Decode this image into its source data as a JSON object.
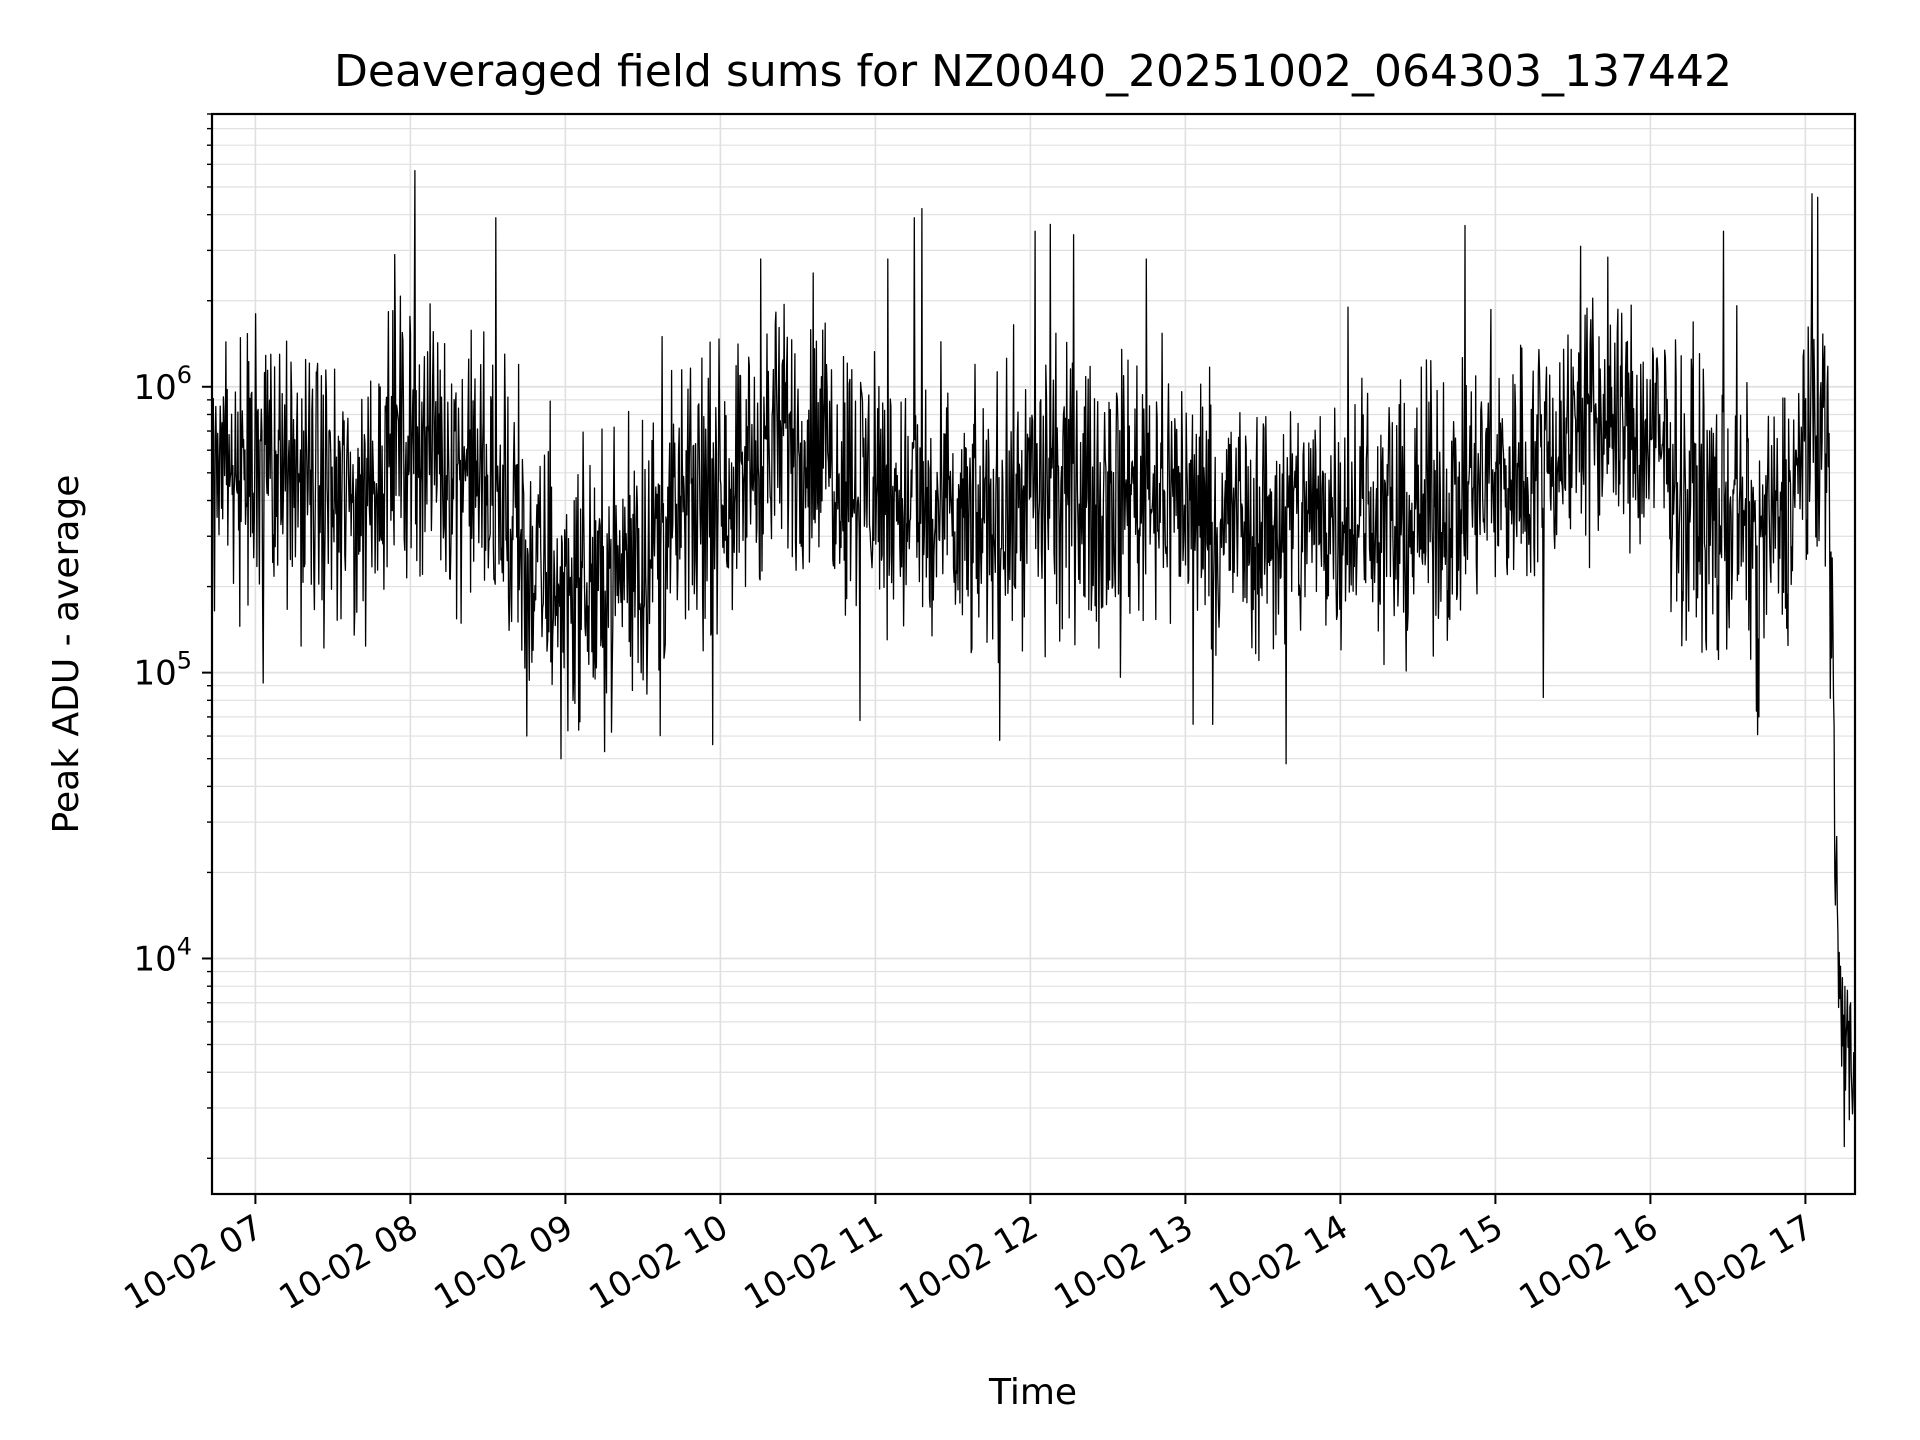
{
  "chart_data": {
    "type": "line",
    "title": "Deaveraged field sums for NZ0040_20251002_064303_137442",
    "xlabel": "Time",
    "ylabel": "Peak ADU - average",
    "yscale": "log",
    "ylim": [
      1500,
      9000000
    ],
    "xlim_hours": [
      6.72,
      17.32
    ],
    "x_ticks": [
      {
        "hour": 7,
        "label": "10-02 07"
      },
      {
        "hour": 8,
        "label": "10-02 08"
      },
      {
        "hour": 9,
        "label": "10-02 09"
      },
      {
        "hour": 10,
        "label": "10-02 10"
      },
      {
        "hour": 11,
        "label": "10-02 11"
      },
      {
        "hour": 12,
        "label": "10-02 12"
      },
      {
        "hour": 13,
        "label": "10-02 13"
      },
      {
        "hour": 14,
        "label": "10-02 14"
      },
      {
        "hour": 15,
        "label": "10-02 15"
      },
      {
        "hour": 16,
        "label": "10-02 16"
      },
      {
        "hour": 17,
        "label": "10-02 17"
      }
    ],
    "y_ticks": [
      {
        "value": 10000,
        "base": "10",
        "exp": "4"
      },
      {
        "value": 100000,
        "base": "10",
        "exp": "5"
      },
      {
        "value": 1000000,
        "base": "10",
        "exp": "6"
      }
    ],
    "grid": true,
    "line_color": "#000000",
    "grid_color": "#e0e0e0",
    "series": [
      {
        "name": "deaveraged field sums",
        "noise_spread_log10": 0.32,
        "baseline_points": [
          {
            "hour": 6.72,
            "value": 450000
          },
          {
            "hour": 7.2,
            "value": 480000
          },
          {
            "hour": 7.6,
            "value": 380000
          },
          {
            "hour": 8.0,
            "value": 700000
          },
          {
            "hour": 8.4,
            "value": 520000
          },
          {
            "hour": 8.8,
            "value": 220000
          },
          {
            "hour": 9.2,
            "value": 200000
          },
          {
            "hour": 9.6,
            "value": 300000
          },
          {
            "hour": 10.0,
            "value": 450000
          },
          {
            "hour": 10.4,
            "value": 650000
          },
          {
            "hour": 10.8,
            "value": 550000
          },
          {
            "hour": 11.2,
            "value": 380000
          },
          {
            "hour": 11.6,
            "value": 300000
          },
          {
            "hour": 12.0,
            "value": 450000
          },
          {
            "hour": 12.4,
            "value": 420000
          },
          {
            "hour": 12.8,
            "value": 480000
          },
          {
            "hour": 13.2,
            "value": 350000
          },
          {
            "hour": 13.6,
            "value": 320000
          },
          {
            "hour": 14.0,
            "value": 380000
          },
          {
            "hour": 14.4,
            "value": 330000
          },
          {
            "hour": 14.8,
            "value": 420000
          },
          {
            "hour": 15.2,
            "value": 520000
          },
          {
            "hour": 15.6,
            "value": 800000
          },
          {
            "hour": 16.0,
            "value": 650000
          },
          {
            "hour": 16.4,
            "value": 350000
          },
          {
            "hour": 16.8,
            "value": 300000
          },
          {
            "hour": 17.0,
            "value": 550000
          },
          {
            "hour": 17.12,
            "value": 800000
          },
          {
            "hour": 17.15,
            "value": 500000
          },
          {
            "hour": 17.17,
            "value": 150000
          },
          {
            "hour": 17.2,
            "value": 20000
          },
          {
            "hour": 17.23,
            "value": 6000
          },
          {
            "hour": 17.32,
            "value": 4000
          }
        ],
        "spikes": [
          {
            "hour": 7.0,
            "value": 1800000
          },
          {
            "hour": 7.05,
            "value": 92000
          },
          {
            "hour": 7.9,
            "value": 2900000
          },
          {
            "hour": 8.03,
            "value": 5700000
          },
          {
            "hour": 8.55,
            "value": 3900000
          },
          {
            "hour": 8.75,
            "value": 60000
          },
          {
            "hour": 8.97,
            "value": 50000
          },
          {
            "hour": 9.95,
            "value": 56000
          },
          {
            "hour": 10.26,
            "value": 2800000
          },
          {
            "hour": 10.6,
            "value": 2500000
          },
          {
            "hour": 10.9,
            "value": 68000
          },
          {
            "hour": 11.08,
            "value": 2800000
          },
          {
            "hour": 11.25,
            "value": 3900000
          },
          {
            "hour": 11.3,
            "value": 4200000
          },
          {
            "hour": 11.8,
            "value": 58000
          },
          {
            "hour": 12.03,
            "value": 3500000
          },
          {
            "hour": 12.13,
            "value": 3700000
          },
          {
            "hour": 12.28,
            "value": 3400000
          },
          {
            "hour": 12.75,
            "value": 2800000
          },
          {
            "hour": 13.05,
            "value": 66000
          },
          {
            "hour": 13.65,
            "value": 48000
          },
          {
            "hour": 14.05,
            "value": 1900000
          },
          {
            "hour": 15.55,
            "value": 3100000
          },
          {
            "hour": 16.47,
            "value": 3500000
          },
          {
            "hour": 16.7,
            "value": 70000
          },
          {
            "hour": 17.08,
            "value": 4600000
          },
          {
            "hour": 17.25,
            "value": 2200
          }
        ]
      }
    ]
  }
}
